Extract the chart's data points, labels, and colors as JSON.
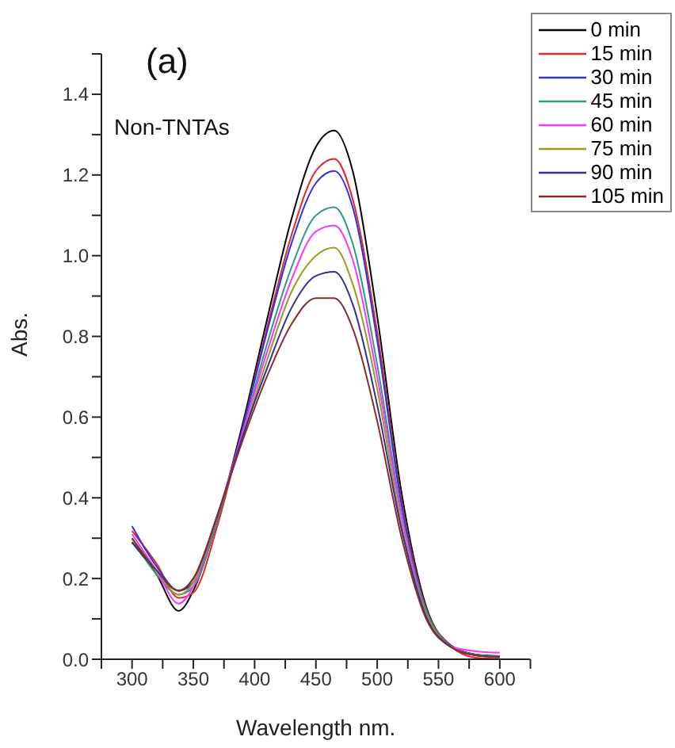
{
  "chart_data": {
    "type": "line",
    "xlabel": "Wavelength nm.",
    "ylabel": "Abs.",
    "annotations": [
      "(a)",
      "Non-TNTAs"
    ],
    "x": [
      300,
      320,
      338,
      350,
      370,
      390,
      410,
      430,
      450,
      465,
      480,
      500,
      520,
      540,
      560,
      580,
      600
    ],
    "series": [
      {
        "name": "0 min",
        "color": "#000000",
        "values": [
          0.29,
          0.21,
          0.12,
          0.17,
          0.35,
          0.58,
          0.84,
          1.09,
          1.27,
          1.31,
          1.21,
          0.85,
          0.41,
          0.13,
          0.035,
          0.012,
          0.008
        ]
      },
      {
        "name": "15 min",
        "color": "#e8262b",
        "values": [
          0.318,
          0.237,
          0.152,
          0.165,
          0.335,
          0.57,
          0.82,
          1.05,
          1.21,
          1.24,
          1.14,
          0.81,
          0.39,
          0.125,
          0.034,
          0.004,
          0.001
        ]
      },
      {
        "name": "30 min",
        "color": "#3030e0",
        "values": [
          0.33,
          0.23,
          0.17,
          0.19,
          0.35,
          0.57,
          0.81,
          1.03,
          1.18,
          1.21,
          1.12,
          0.79,
          0.38,
          0.12,
          0.034,
          0.012,
          0.008
        ]
      },
      {
        "name": "45 min",
        "color": "#2a9a8a",
        "values": [
          0.3,
          0.21,
          0.16,
          0.18,
          0.35,
          0.56,
          0.78,
          0.97,
          1.1,
          1.12,
          1.03,
          0.73,
          0.36,
          0.12,
          0.033,
          0.011,
          0.007
        ]
      },
      {
        "name": "60 min",
        "color": "#ff33ff",
        "values": [
          0.31,
          0.22,
          0.138,
          0.18,
          0.36,
          0.56,
          0.76,
          0.94,
          1.06,
          1.075,
          0.99,
          0.7,
          0.35,
          0.11,
          0.032,
          0.02,
          0.016
        ]
      },
      {
        "name": "75 min",
        "color": "#9a9a20",
        "values": [
          0.3,
          0.22,
          0.16,
          0.19,
          0.36,
          0.55,
          0.74,
          0.91,
          1.0,
          1.02,
          0.93,
          0.67,
          0.33,
          0.11,
          0.031,
          0.011,
          0.006
        ]
      },
      {
        "name": "90 min",
        "color": "#303090",
        "values": [
          0.29,
          0.22,
          0.17,
          0.2,
          0.36,
          0.55,
          0.72,
          0.87,
          0.95,
          0.96,
          0.88,
          0.63,
          0.32,
          0.105,
          0.031,
          0.01,
          0.006
        ]
      },
      {
        "name": "105 min",
        "color": "#8b2a2a",
        "values": [
          0.3,
          0.22,
          0.17,
          0.2,
          0.36,
          0.54,
          0.7,
          0.83,
          0.895,
          0.895,
          0.82,
          0.59,
          0.3,
          0.1,
          0.03,
          0.01,
          0.005
        ]
      }
    ],
    "xlim": [
      275,
      625
    ],
    "xticks": [
      {
        "value": 275,
        "label": null
      },
      300,
      {
        "value": 325,
        "label": null
      },
      350,
      {
        "value": 375,
        "label": null
      },
      400,
      {
        "value": 425,
        "label": null
      },
      450,
      {
        "value": 475,
        "label": null
      },
      500,
      {
        "value": 525,
        "label": null
      },
      550,
      {
        "value": 575,
        "label": null
      },
      600,
      {
        "value": 625,
        "label": null
      }
    ],
    "ylim": [
      0,
      1.5
    ],
    "yticks": [
      {
        "value": 0,
        "label": "0.0"
      },
      {
        "value": 0.1,
        "label": null
      },
      0.2,
      {
        "value": 0.3,
        "label": null
      },
      0.4,
      {
        "value": 0.5,
        "label": null
      },
      0.6,
      {
        "value": 0.7,
        "label": null
      },
      0.8,
      {
        "value": 0.9,
        "label": null
      },
      {
        "value": 1,
        "label": "1.0"
      },
      {
        "value": 1.1,
        "label": null
      },
      1.2,
      {
        "value": 1.3,
        "label": null
      },
      1.4,
      {
        "value": 1.5,
        "label": null
      }
    ],
    "grid": false,
    "legend": "top right",
    "marker": "none",
    "line_style": "solid"
  }
}
